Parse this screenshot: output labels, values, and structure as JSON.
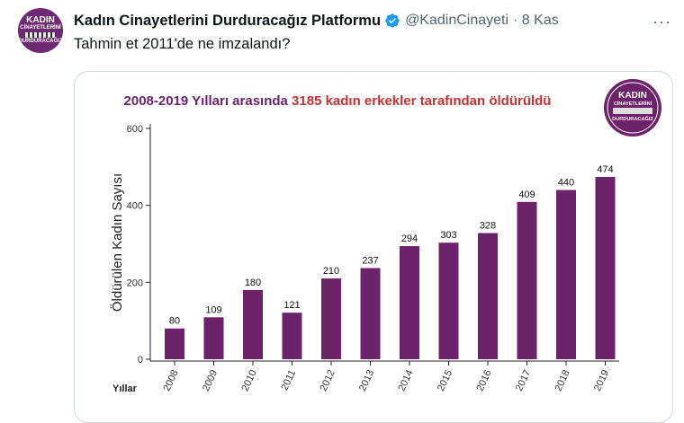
{
  "tweet": {
    "avatar_lines": [
      "KADIN",
      "CİNAYETLERİNİ",
      "DURDURACAĞIZ"
    ],
    "display_name": "Kadın Cinayetlerini Durduracağız Platformu",
    "handle": "@KadinCinayeti",
    "time": "· 8 Kas",
    "more": "···",
    "text": "Tahmin et 2011'de ne imzalandı?"
  },
  "colors": {
    "bar": "#6d2369",
    "title_purple": "#6d2369",
    "title_red": "#c8312f",
    "verified": "#1d9bf0"
  },
  "icons": {
    "verified": "verified-badge-icon",
    "more": "more-options-icon"
  },
  "chart_data": {
    "type": "bar",
    "title_parts": [
      "2008-2019 Yılları arasında ",
      "3185 kadın erkekler tarafından öldürüldü"
    ],
    "categories": [
      "2008",
      "2009",
      "2010",
      "2011",
      "2012",
      "2013",
      "2014",
      "2015",
      "2016",
      "2017",
      "2018",
      "2019"
    ],
    "values": [
      80,
      109,
      180,
      121,
      210,
      237,
      294,
      303,
      328,
      409,
      440,
      474
    ],
    "ylabel": "Öldürülen Kadın Sayısı",
    "xlabel": "Yıllar",
    "ylim": [
      0,
      600
    ],
    "yticks": [
      0,
      200,
      400,
      600
    ],
    "grid": false,
    "logo_lines": [
      "KADIN",
      "CİNAYETLERİNİ",
      "DURDURACAĞIZ"
    ]
  }
}
